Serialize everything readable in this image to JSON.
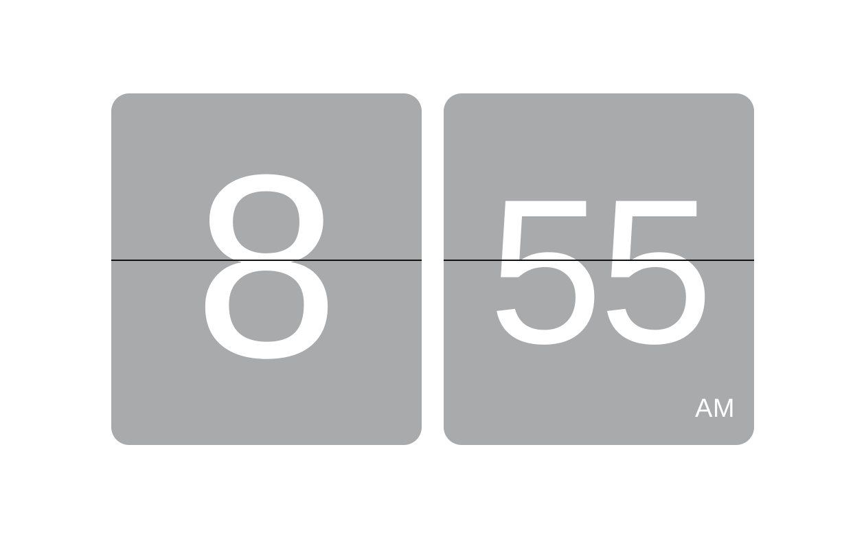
{
  "clock": {
    "hour": "8",
    "minutes": "55",
    "period": "AM"
  },
  "colors": {
    "background": "#ffffff",
    "card": "#a9aaac",
    "digit": "#ffffff",
    "split_line": "#111111"
  }
}
